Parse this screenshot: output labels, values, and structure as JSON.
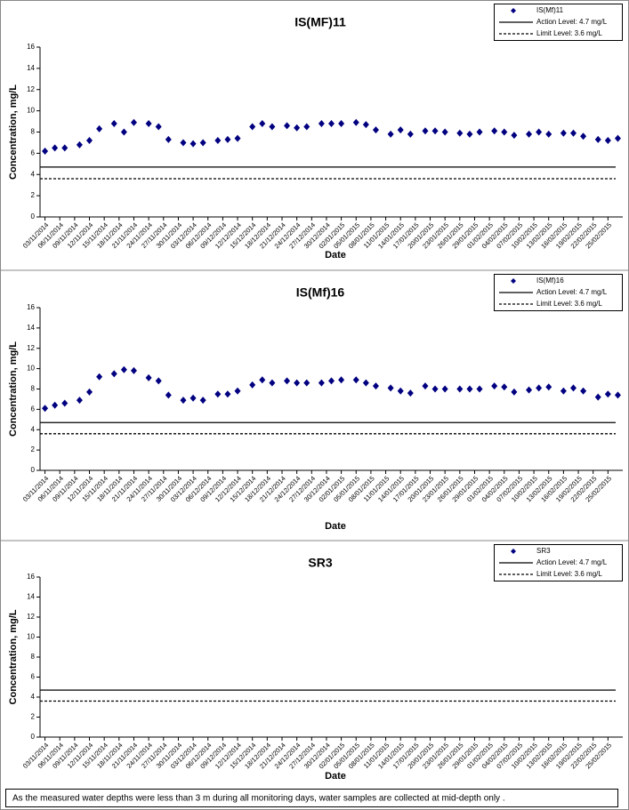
{
  "chart_data": [
    {
      "type": "scatter",
      "title": "IS(MF)11",
      "xlabel": "Date",
      "ylabel": "Concentration, mg/L",
      "x": [
        "03/11/2014",
        "05/11/2014",
        "07/11/2014",
        "10/11/2014",
        "12/11/2014",
        "14/11/2014",
        "17/11/2014",
        "19/11/2014",
        "21/11/2014",
        "24/11/2014",
        "26/11/2014",
        "28/11/2014",
        "01/12/2014",
        "03/12/2014",
        "05/12/2014",
        "08/12/2014",
        "10/12/2014",
        "12/12/2014",
        "15/12/2014",
        "17/12/2014",
        "19/12/2014",
        "22/12/2014",
        "24/12/2014",
        "26/12/2014",
        "29/12/2014",
        "31/12/2014",
        "02/01/2015",
        "05/01/2015",
        "07/01/2015",
        "09/01/2015",
        "12/01/2015",
        "14/01/2015",
        "16/01/2015",
        "19/01/2015",
        "21/01/2015",
        "23/01/2015",
        "26/01/2015",
        "28/01/2015",
        "30/01/2015",
        "02/02/2015",
        "04/02/2015",
        "06/02/2015",
        "09/02/2015",
        "11/02/2015",
        "13/02/2015",
        "16/02/2015",
        "18/02/2015",
        "20/02/2015",
        "23/02/2015",
        "25/02/2015",
        "27/02/2015"
      ],
      "series": [
        {
          "name": "IS(Mf)11",
          "color": "#000080",
          "values": [
            6.2,
            6.5,
            6.5,
            6.8,
            7.2,
            8.3,
            8.8,
            8.0,
            8.9,
            8.8,
            8.5,
            7.3,
            7.0,
            6.9,
            7.0,
            7.2,
            7.3,
            7.4,
            8.5,
            8.8,
            8.5,
            8.6,
            8.4,
            8.5,
            8.8,
            8.8,
            8.8,
            8.9,
            8.7,
            8.2,
            7.8,
            8.2,
            7.8,
            8.1,
            8.1,
            8.0,
            7.9,
            7.8,
            8.0,
            8.1,
            8.0,
            7.7,
            7.8,
            8.0,
            7.8,
            7.9,
            7.9,
            7.6,
            7.3,
            7.2,
            7.4
          ]
        }
      ],
      "reference_lines": [
        {
          "name": "Action Level: 4.7 mg/L",
          "value": 4.7,
          "style": "solid",
          "color": "#000000"
        },
        {
          "name": "Limit Level: 3.6 mg/L",
          "value": 3.6,
          "style": "dashed",
          "color": "#000000"
        }
      ],
      "xlim": [
        "02/11/2014",
        "28/02/2015"
      ],
      "xticks": [
        "03/11/2014",
        "06/11/2014",
        "09/11/2014",
        "12/11/2014",
        "15/11/2014",
        "18/11/2014",
        "21/11/2014",
        "24/11/2014",
        "27/11/2014",
        "30/11/2014",
        "03/12/2014",
        "06/12/2014",
        "09/12/2014",
        "12/12/2014",
        "15/12/2014",
        "18/12/2014",
        "21/12/2014",
        "24/12/2014",
        "27/12/2014",
        "30/12/2014",
        "02/01/2015",
        "05/01/2015",
        "08/01/2015",
        "11/01/2015",
        "14/01/2015",
        "17/01/2015",
        "20/01/2015",
        "23/01/2015",
        "26/01/2015",
        "29/01/2015",
        "01/02/2015",
        "04/02/2015",
        "07/02/2015",
        "10/02/2015",
        "13/02/2015",
        "16/02/2015",
        "19/02/2015",
        "22/02/2015",
        "25/02/2015"
      ],
      "ylim": [
        0,
        16
      ],
      "yticks": [
        0,
        2,
        4,
        6,
        8,
        10,
        12,
        14,
        16
      ],
      "legend": "upper right"
    },
    {
      "type": "scatter",
      "title": "IS(Mf)16",
      "xlabel": "Date",
      "ylabel": "Concentration, mg/L",
      "x": [
        "03/11/2014",
        "05/11/2014",
        "07/11/2014",
        "10/11/2014",
        "12/11/2014",
        "14/11/2014",
        "17/11/2014",
        "19/11/2014",
        "21/11/2014",
        "24/11/2014",
        "26/11/2014",
        "28/11/2014",
        "01/12/2014",
        "03/12/2014",
        "05/12/2014",
        "08/12/2014",
        "10/12/2014",
        "12/12/2014",
        "15/12/2014",
        "17/12/2014",
        "19/12/2014",
        "22/12/2014",
        "24/12/2014",
        "26/12/2014",
        "29/12/2014",
        "31/12/2014",
        "02/01/2015",
        "05/01/2015",
        "07/01/2015",
        "09/01/2015",
        "12/01/2015",
        "14/01/2015",
        "16/01/2015",
        "19/01/2015",
        "21/01/2015",
        "23/01/2015",
        "26/01/2015",
        "28/01/2015",
        "30/01/2015",
        "02/02/2015",
        "04/02/2015",
        "06/02/2015",
        "09/02/2015",
        "11/02/2015",
        "13/02/2015",
        "16/02/2015",
        "18/02/2015",
        "20/02/2015",
        "23/02/2015",
        "25/02/2015",
        "27/02/2015"
      ],
      "series": [
        {
          "name": "IS(Mf)16",
          "color": "#000080",
          "values": [
            6.1,
            6.4,
            6.6,
            6.9,
            7.7,
            9.2,
            9.5,
            9.9,
            9.8,
            9.1,
            8.8,
            7.4,
            6.9,
            7.1,
            6.9,
            7.5,
            7.5,
            7.8,
            8.4,
            8.9,
            8.6,
            8.8,
            8.6,
            8.6,
            8.6,
            8.8,
            8.9,
            8.9,
            8.6,
            8.3,
            8.1,
            7.8,
            7.6,
            8.3,
            8.0,
            8.0,
            8.0,
            8.0,
            8.0,
            8.3,
            8.2,
            7.7,
            7.9,
            8.1,
            8.2,
            7.8,
            8.1,
            7.8,
            7.2,
            7.5,
            7.4
          ]
        }
      ],
      "reference_lines": [
        {
          "name": "Action Level: 4.7 mg/L",
          "value": 4.7,
          "style": "solid",
          "color": "#000000"
        },
        {
          "name": "Limit Level: 3.6 mg/L",
          "value": 3.6,
          "style": "dashed",
          "color": "#000000"
        }
      ],
      "xlim": [
        "02/11/2014",
        "28/02/2015"
      ],
      "xticks": [
        "03/11/2014",
        "06/11/2014",
        "09/11/2014",
        "12/11/2014",
        "15/11/2014",
        "18/11/2014",
        "21/11/2014",
        "24/11/2014",
        "27/11/2014",
        "30/11/2014",
        "03/12/2014",
        "06/12/2014",
        "09/12/2014",
        "12/12/2014",
        "15/12/2014",
        "18/12/2014",
        "21/12/2014",
        "24/12/2014",
        "27/12/2014",
        "30/12/2014",
        "02/01/2015",
        "05/01/2015",
        "08/01/2015",
        "11/01/2015",
        "14/01/2015",
        "17/01/2015",
        "20/01/2015",
        "23/01/2015",
        "26/01/2015",
        "29/01/2015",
        "01/02/2015",
        "04/02/2015",
        "07/02/2015",
        "10/02/2015",
        "13/02/2015",
        "16/02/2015",
        "19/02/2015",
        "22/02/2015",
        "25/02/2015"
      ],
      "ylim": [
        0,
        16
      ],
      "yticks": [
        0,
        2,
        4,
        6,
        8,
        10,
        12,
        14,
        16
      ],
      "legend": "upper right"
    },
    {
      "type": "scatter",
      "title": "SR3",
      "xlabel": "Date",
      "ylabel": "Concentration, mg/L",
      "x": [],
      "series": [
        {
          "name": "SR3",
          "color": "#000080",
          "values": []
        }
      ],
      "reference_lines": [
        {
          "name": "Action Level: 4.7 mg/L",
          "value": 4.7,
          "style": "solid",
          "color": "#000000"
        },
        {
          "name": "Limit Level: 3.6 mg/L",
          "value": 3.6,
          "style": "dashed",
          "color": "#000000"
        }
      ],
      "xlim": [
        "02/11/2014",
        "28/02/2015"
      ],
      "xticks": [
        "03/11/2014",
        "06/11/2014",
        "09/11/2014",
        "12/11/2014",
        "15/11/2014",
        "18/11/2014",
        "21/11/2014",
        "24/11/2014",
        "27/11/2014",
        "30/11/2014",
        "03/12/2014",
        "06/12/2014",
        "09/12/2014",
        "12/12/2014",
        "15/12/2014",
        "18/12/2014",
        "21/12/2014",
        "24/12/2014",
        "27/12/2014",
        "30/12/2014",
        "02/01/2015",
        "05/01/2015",
        "08/01/2015",
        "11/01/2015",
        "14/01/2015",
        "17/01/2015",
        "20/01/2015",
        "23/01/2015",
        "26/01/2015",
        "29/01/2015",
        "01/02/2015",
        "04/02/2015",
        "07/02/2015",
        "10/02/2015",
        "13/02/2015",
        "16/02/2015",
        "19/02/2015",
        "22/02/2015",
        "25/02/2015"
      ],
      "ylim": [
        0,
        16
      ],
      "yticks": [
        0,
        2,
        4,
        6,
        8,
        10,
        12,
        14,
        16
      ],
      "legend": "upper right"
    }
  ],
  "note": "As the measured water depths were less than 3 m during all monitoring days, water samples are collected  at mid-depth only ."
}
